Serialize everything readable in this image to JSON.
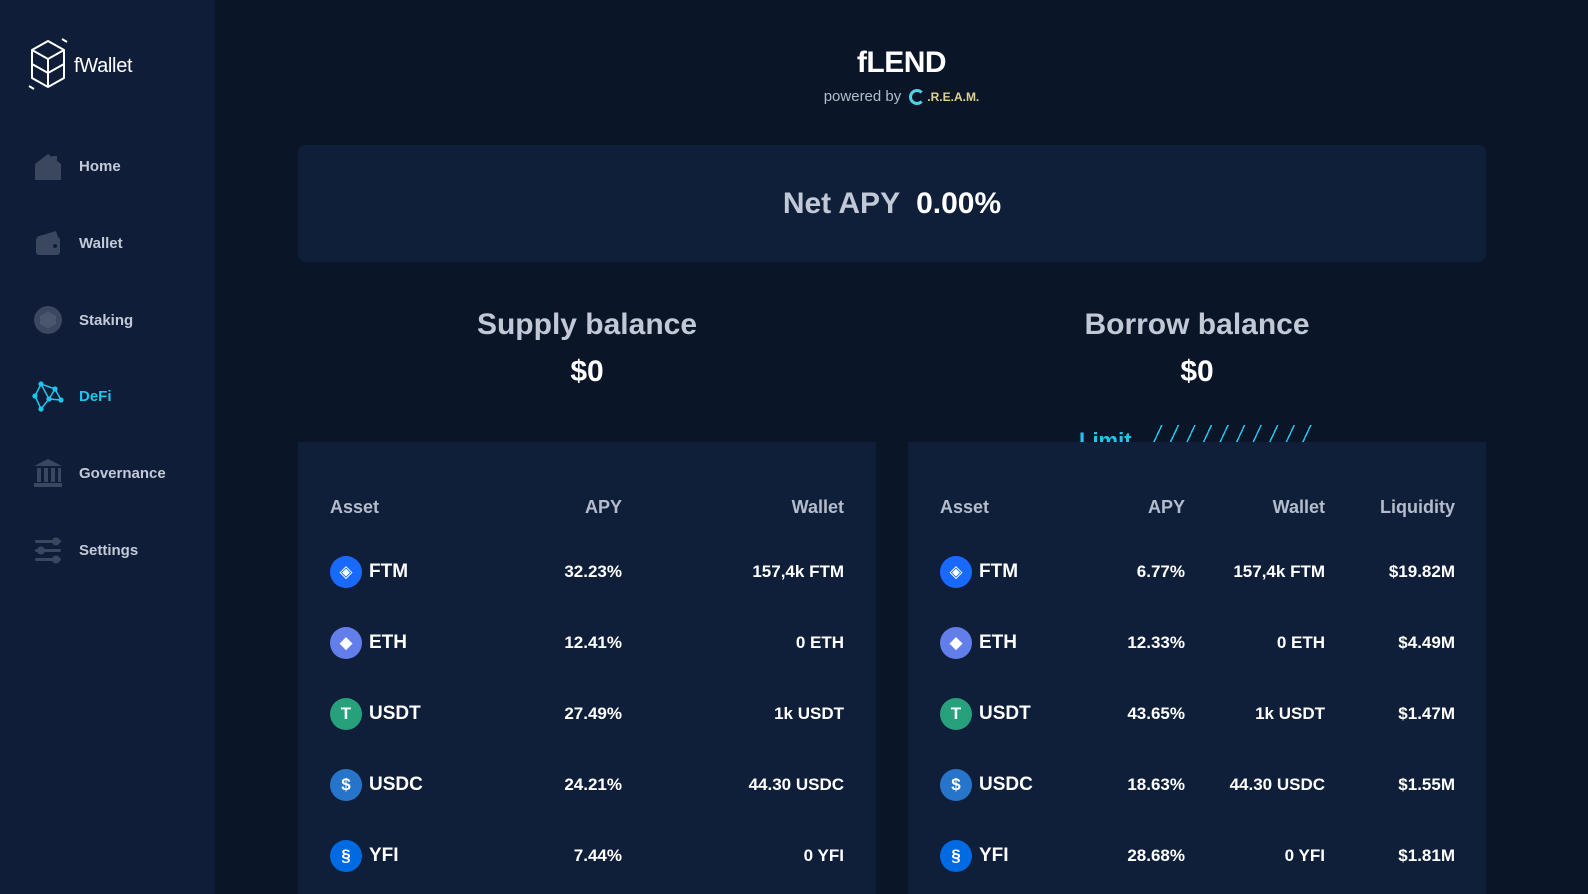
{
  "app": {
    "name": "fWallet"
  },
  "sidebar": {
    "items": [
      {
        "label": "Home",
        "icon": "home-icon"
      },
      {
        "label": "Wallet",
        "icon": "wallet-icon"
      },
      {
        "label": "Staking",
        "icon": "staking-icon"
      },
      {
        "label": "DeFi",
        "icon": "defi-icon",
        "active": true
      },
      {
        "label": "Governance",
        "icon": "governance-icon"
      },
      {
        "label": "Settings",
        "icon": "settings-icon"
      }
    ]
  },
  "header": {
    "title": "fLEND",
    "powered_by": "powered by",
    "partner": ".R.E.A.M."
  },
  "net_apy": {
    "label": "Net APY",
    "value": "0.00%"
  },
  "supply": {
    "title": "Supply balance",
    "value": "$0",
    "columns": [
      "Asset",
      "APY",
      "Wallet"
    ],
    "rows": [
      {
        "asset": "FTM",
        "apy": "32.23%",
        "wallet": "157,4k FTM"
      },
      {
        "asset": "ETH",
        "apy": "12.41%",
        "wallet": "0 ETH"
      },
      {
        "asset": "USDT",
        "apy": "27.49%",
        "wallet": "1k USDT"
      },
      {
        "asset": "USDC",
        "apy": "24.21%",
        "wallet": "44.30 USDC"
      },
      {
        "asset": "YFI",
        "apy": "7.44%",
        "wallet": "0 YFI"
      }
    ]
  },
  "borrow": {
    "title": "Borrow balance",
    "value": "$0",
    "limit_label": "Limit",
    "columns": [
      "Asset",
      "APY",
      "Wallet",
      "Liquidity"
    ],
    "rows": [
      {
        "asset": "FTM",
        "apy": "6.77%",
        "wallet": "157,4k FTM",
        "liquidity": "$19.82M"
      },
      {
        "asset": "ETH",
        "apy": "12.33%",
        "wallet": "0 ETH",
        "liquidity": "$4.49M"
      },
      {
        "asset": "USDT",
        "apy": "43.65%",
        "wallet": "1k USDT",
        "liquidity": "$1.47M"
      },
      {
        "asset": "USDC",
        "apy": "18.63%",
        "wallet": "44.30 USDC",
        "liquidity": "$1.55M"
      },
      {
        "asset": "YFI",
        "apy": "28.68%",
        "wallet": "0 YFI",
        "liquidity": "$1.81M"
      }
    ]
  },
  "colors": {
    "background": "#0a1528",
    "sidebar": "#0f1d38",
    "panel": "#0f1f3a",
    "accent": "#1ec6eb",
    "ftm": "#1969ff",
    "eth": "#627eea",
    "usdt": "#26a17b",
    "usdc": "#2775ca",
    "yfi": "#006ae3"
  }
}
